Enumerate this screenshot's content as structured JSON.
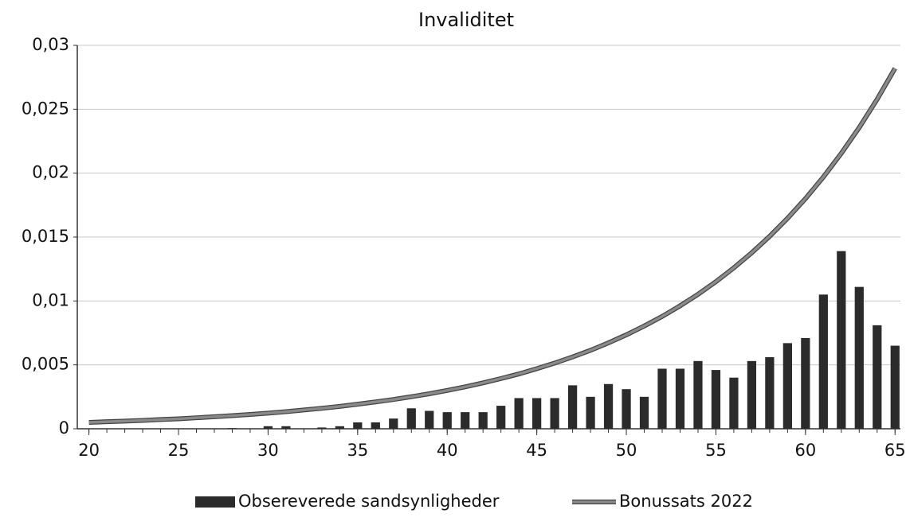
{
  "chart_data": {
    "type": "bar-line",
    "title": "Invaliditet",
    "x": [
      20,
      21,
      22,
      23,
      24,
      25,
      26,
      27,
      28,
      29,
      30,
      31,
      32,
      33,
      34,
      35,
      36,
      37,
      38,
      39,
      40,
      41,
      42,
      43,
      44,
      45,
      46,
      47,
      48,
      49,
      50,
      51,
      52,
      53,
      54,
      55,
      56,
      57,
      58,
      59,
      60,
      61,
      62,
      63,
      64,
      65
    ],
    "series": [
      {
        "name": "Obsereverede sandsynligheder",
        "kind": "bar",
        "color": "#2b2b2b",
        "values": [
          0,
          0,
          0,
          0,
          0,
          0,
          0,
          0,
          5e-05,
          0,
          0.0002,
          0.0002,
          0,
          0.0001,
          0.0002,
          0.0005,
          0.0005,
          0.0008,
          0.0016,
          0.0014,
          0.0013,
          0.0013,
          0.0013,
          0.0018,
          0.0024,
          0.0024,
          0.0024,
          0.0034,
          0.0025,
          0.0035,
          0.0031,
          0.0025,
          0.0047,
          0.0047,
          0.0053,
          0.0046,
          0.004,
          0.0053,
          0.0056,
          0.0067,
          0.0071,
          0.0105,
          0.0139,
          0.0111,
          0.0081,
          0.0065
        ]
      },
      {
        "name": "Bonussats 2022",
        "kind": "line",
        "color": "#8a8a8a",
        "values": [
          0.0005,
          0.00055,
          0.0006,
          0.00065,
          0.00072,
          0.00078,
          0.00086,
          0.00094,
          0.00103,
          0.00112,
          0.00122,
          0.00134,
          0.00147,
          0.0016,
          0.00175,
          0.00192,
          0.0021,
          0.00229,
          0.00251,
          0.00274,
          0.003,
          0.00328,
          0.00359,
          0.00393,
          0.00429,
          0.0047,
          0.00514,
          0.00562,
          0.00614,
          0.00672,
          0.00735,
          0.00804,
          0.00879,
          0.00962,
          0.01052,
          0.01151,
          0.01259,
          0.01377,
          0.01506,
          0.01647,
          0.01801,
          0.0197,
          0.02155,
          0.02357,
          0.02578,
          0.0282
        ]
      }
    ],
    "xlim": [
      19.35,
      65.3
    ],
    "xticks": [
      20,
      25,
      30,
      35,
      40,
      45,
      50,
      55,
      60,
      65
    ],
    "ylim": [
      0,
      0.03
    ],
    "yticks": [
      0,
      {
        "value": 0.005,
        "label": "0,005"
      },
      {
        "value": 0.01,
        "label": "0,01"
      },
      {
        "value": 0.015,
        "label": "0,015"
      },
      {
        "value": 0.02,
        "label": "0,02"
      },
      {
        "value": 0.025,
        "label": "0,025"
      },
      {
        "value": 0.03,
        "label": "0,03"
      }
    ],
    "grid": true,
    "legend": "bottom"
  }
}
